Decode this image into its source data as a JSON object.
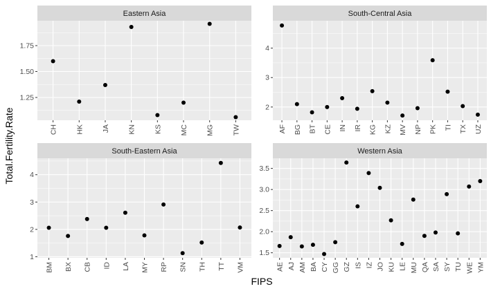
{
  "chart_data": {
    "type": "scatter",
    "xlabel": "FIPS",
    "ylabel": "Total.Fertility.Rate",
    "facets": [
      {
        "title": "Eastern Asia",
        "categories": [
          "CH",
          "HK",
          "JA",
          "KN",
          "KS",
          "MC",
          "MG",
          "TW"
        ],
        "values": [
          1.6,
          1.21,
          1.37,
          1.93,
          1.08,
          1.2,
          1.96,
          1.06
        ],
        "ylim": [
          1.03,
          1.99
        ],
        "yticks": [
          1.25,
          1.5,
          1.75
        ],
        "ytick_labels": [
          "1.25",
          "1.50",
          "1.75"
        ]
      },
      {
        "title": "South-Central Asia",
        "categories": [
          "AF",
          "BG",
          "BT",
          "CE",
          "IN",
          "IR",
          "KG",
          "KZ",
          "MV",
          "NP",
          "PK",
          "TI",
          "TX",
          "UZ"
        ],
        "values": [
          4.77,
          2.1,
          1.82,
          2.0,
          2.3,
          1.94,
          2.54,
          2.15,
          1.71,
          1.96,
          3.59,
          2.52,
          2.03,
          1.74
        ],
        "ylim": [
          1.55,
          4.93
        ],
        "yticks": [
          2,
          3,
          4
        ],
        "ytick_labels": [
          "2",
          "3",
          "4"
        ]
      },
      {
        "title": "South-Eastern Asia",
        "categories": [
          "BM",
          "BX",
          "CB",
          "ID",
          "LA",
          "MY",
          "RP",
          "SN",
          "TH",
          "TT",
          "VM"
        ],
        "values": [
          2.06,
          1.76,
          2.38,
          2.06,
          2.61,
          1.78,
          2.91,
          1.13,
          1.52,
          4.43,
          2.07
        ],
        "ylim": [
          0.96,
          4.6
        ],
        "yticks": [
          1,
          2,
          3,
          4
        ],
        "ytick_labels": [
          "1",
          "2",
          "3",
          "4"
        ]
      },
      {
        "title": "Western Asia",
        "categories": [
          "AE",
          "AJ",
          "AM",
          "BA",
          "CY",
          "GG",
          "GZ",
          "IS",
          "IZ",
          "JO",
          "KU",
          "LE",
          "MU",
          "QA",
          "SA",
          "SY",
          "TU",
          "WE",
          "YM"
        ],
        "values": [
          1.66,
          1.87,
          1.65,
          1.69,
          1.47,
          1.75,
          3.64,
          2.6,
          3.39,
          3.04,
          2.27,
          1.71,
          2.76,
          1.9,
          1.98,
          2.89,
          1.96,
          3.07,
          3.2
        ],
        "ylim": [
          1.38,
          3.74
        ],
        "yticks": [
          1.5,
          2.0,
          2.5,
          3.0,
          3.5
        ],
        "ytick_labels": [
          "1.5",
          "2.0",
          "2.5",
          "3.0",
          "3.5"
        ]
      }
    ],
    "colors": {
      "panel_background": "#ebebeb",
      "strip_background": "#d9d9d9",
      "grid": "#ffffff",
      "point": "#000000",
      "tick_text": "#4d4d4d",
      "axis_title": "#000000"
    },
    "grid": true,
    "legend": "none"
  }
}
